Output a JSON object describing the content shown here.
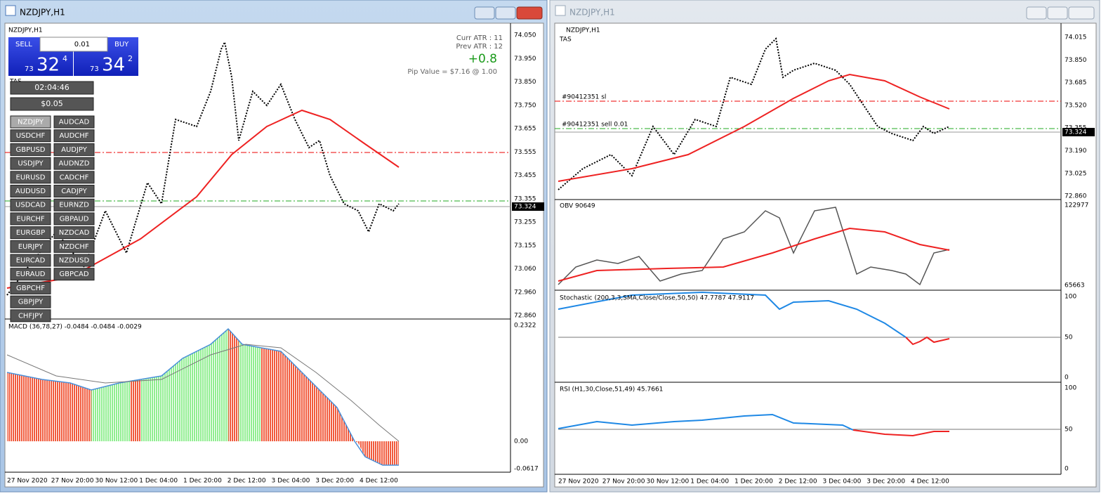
{
  "windows": [
    {
      "title": "NZDJPY,H1",
      "symbol_label": "NZDJPY,H1",
      "trade_panel": {
        "sell": "SELL",
        "buy": "BUY",
        "lot": "0.01",
        "bid_prefix": "73",
        "bid_big": "32",
        "bid_sup": "4",
        "ask_prefix": "73",
        "ask_big": "34",
        "ask_sup": "2"
      },
      "tas": "TAS",
      "timer": "02:04:46",
      "spread": "$0.05",
      "pairs_left": [
        "NZDJPY",
        "USDCHF",
        "GBPUSD",
        "USDJPY",
        "EURUSD",
        "AUDUSD",
        "USDCAD",
        "EURCHF",
        "EURGBP",
        "EURJPY",
        "EURCAD",
        "EURAUD",
        "GBPCHF",
        "GBPJPY",
        "CHFJPY"
      ],
      "pairs_right": [
        "AUDCAD",
        "AUDCHF",
        "AUDJPY",
        "AUDNZD",
        "CADCHF",
        "CADJPY",
        "EURNZD",
        "GBPAUD",
        "NZDCAD",
        "NZDCHF",
        "NZDUSD",
        "GBPCAD"
      ],
      "info": {
        "curr_atr": "Curr ATR : 11",
        "prev_atr": "Prev ATR : 12",
        "change": "+0.8",
        "pip_value": "Pip Value = $7.16 @ 1.00"
      },
      "price_axis": [
        "74.050",
        "73.950",
        "73.850",
        "73.750",
        "73.655",
        "73.555",
        "73.455",
        "73.355",
        "73.255",
        "73.155",
        "73.060",
        "72.960",
        "72.860"
      ],
      "current_price": "73.324",
      "macd_label": "MACD (36,78,27) -0.0484 -0.0484 -0.0029",
      "macd_axis": [
        "0.2322",
        "0.00",
        "-0.0617"
      ],
      "time_axis": [
        "27 Nov 2020",
        "27 Nov 20:00",
        "30 Nov 12:00",
        "1 Dec 04:00",
        "1 Dec 20:00",
        "2 Dec 12:00",
        "3 Dec 04:00",
        "3 Dec 20:00",
        "4 Dec 12:00"
      ]
    },
    {
      "title": "NZDJPY,H1",
      "symbol_label": "NZDJPY,H1",
      "tas": "TAS",
      "sl_label": "#90412351 sl",
      "order_label": "#90412351 sell 0.01",
      "price_axis": [
        "74.015",
        "73.850",
        "73.685",
        "73.520",
        "73.355",
        "73.190",
        "73.025",
        "72.860"
      ],
      "current_price": "73.324",
      "obv_label": "OBV 90649",
      "obv_axis": [
        "122977",
        "65663"
      ],
      "stoch_label": "Stochastic (200,3,3,SMA,Close/Close,50,50) 47.7787 47.9117",
      "stoch_axis": [
        "100",
        "50",
        "0"
      ],
      "rsi_label": "RSI (H1,30,Close,51,49) 45.7661",
      "rsi_axis": [
        "100",
        "50",
        "0"
      ],
      "time_axis": [
        "27 Nov 2020",
        "27 Nov 20:00",
        "30 Nov 12:00",
        "1 Dec 04:00",
        "1 Dec 20:00",
        "2 Dec 12:00",
        "3 Dec 04:00",
        "3 Dec 20:00",
        "4 Dec 12:00"
      ]
    }
  ]
}
